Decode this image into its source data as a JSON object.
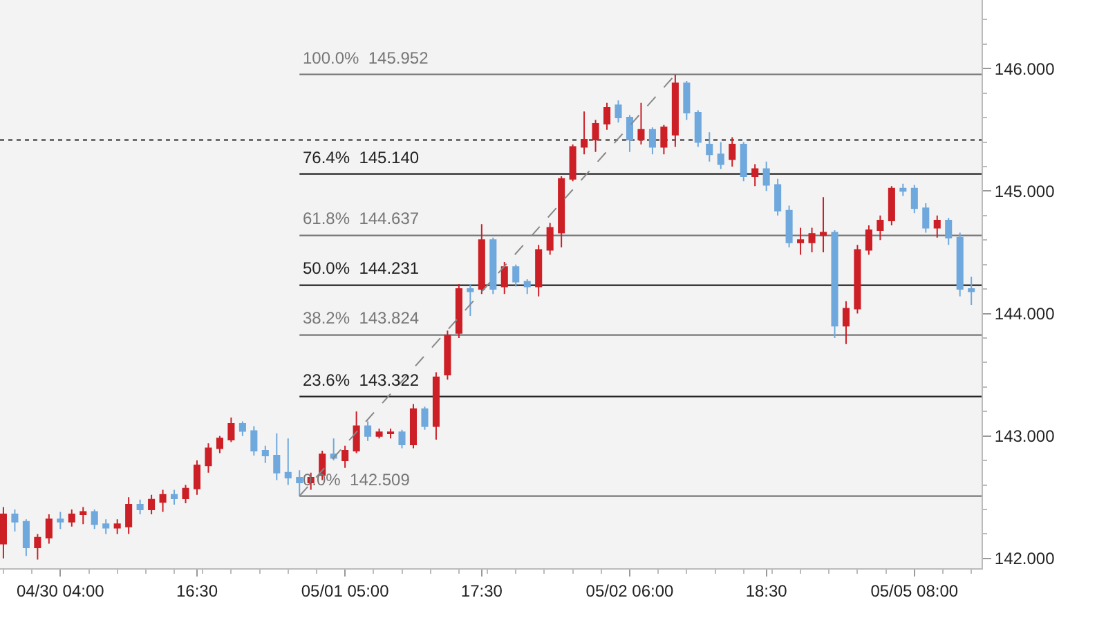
{
  "chart_data": {
    "type": "candlestick",
    "categories": [
      null,
      null,
      null,
      null,
      null,
      "04/30 04:00",
      null,
      null,
      null,
      null,
      null,
      null,
      null,
      null,
      null,
      null,
      null,
      "16:30",
      null,
      null,
      null,
      null,
      null,
      null,
      null,
      null,
      null,
      null,
      null,
      null,
      "05/01 05:00",
      null,
      null,
      null,
      null,
      null,
      null,
      null,
      null,
      null,
      null,
      null,
      "17:30",
      null,
      null,
      null,
      null,
      null,
      null,
      null,
      null,
      null,
      null,
      null,
      null,
      "05/02 06:00",
      null,
      null,
      null,
      null,
      null,
      null,
      null,
      null,
      null,
      null,
      null,
      "18:30",
      null,
      null,
      null,
      null,
      null,
      null,
      null,
      null,
      null,
      null,
      null,
      null,
      "05/05 08:00",
      null,
      null,
      null,
      null,
      null
    ],
    "ohlc": [
      [
        142.12,
        142.42,
        142.0,
        142.36
      ],
      [
        142.36,
        142.4,
        142.22,
        142.3
      ],
      [
        142.3,
        142.32,
        142.02,
        142.09
      ],
      [
        142.09,
        142.2,
        141.99,
        142.17
      ],
      [
        142.17,
        142.36,
        142.12,
        142.32
      ],
      [
        142.32,
        142.38,
        142.24,
        142.3
      ],
      [
        142.3,
        142.4,
        142.26,
        142.36
      ],
      [
        142.36,
        142.42,
        142.28,
        142.38
      ],
      [
        142.38,
        142.4,
        142.24,
        142.28
      ],
      [
        142.28,
        142.32,
        142.2,
        142.25
      ],
      [
        142.25,
        142.32,
        142.2,
        142.28
      ],
      [
        142.26,
        142.5,
        142.2,
        142.44
      ],
      [
        142.44,
        142.48,
        142.36,
        142.4
      ],
      [
        142.4,
        142.52,
        142.36,
        142.48
      ],
      [
        142.46,
        142.56,
        142.38,
        142.52
      ],
      [
        142.52,
        142.56,
        142.44,
        142.49
      ],
      [
        142.49,
        142.6,
        142.45,
        142.57
      ],
      [
        142.57,
        142.8,
        142.52,
        142.76
      ],
      [
        142.76,
        142.94,
        142.7,
        142.9
      ],
      [
        142.9,
        143.0,
        142.86,
        142.98
      ],
      [
        142.97,
        143.15,
        142.95,
        143.1
      ],
      [
        143.1,
        143.12,
        143.0,
        143.04
      ],
      [
        143.04,
        143.08,
        142.84,
        142.88
      ],
      [
        142.88,
        142.92,
        142.78,
        142.84
      ],
      [
        142.84,
        143.02,
        142.64,
        142.7
      ],
      [
        142.7,
        142.98,
        142.6,
        142.66
      ],
      [
        142.66,
        142.72,
        142.51,
        142.62
      ],
      [
        142.62,
        142.7,
        142.56,
        142.66
      ],
      [
        142.68,
        142.88,
        142.64,
        142.85
      ],
      [
        142.85,
        142.98,
        142.8,
        142.82
      ],
      [
        142.8,
        142.92,
        142.74,
        142.88
      ],
      [
        142.88,
        143.2,
        142.86,
        143.08
      ],
      [
        143.08,
        143.12,
        142.96,
        143.0
      ],
      [
        143.0,
        143.06,
        142.98,
        143.03
      ],
      [
        143.02,
        143.06,
        142.98,
        143.03
      ],
      [
        143.03,
        143.05,
        142.9,
        142.93
      ],
      [
        142.93,
        143.26,
        142.9,
        143.22
      ],
      [
        143.22,
        143.24,
        143.05,
        143.08
      ],
      [
        143.08,
        143.52,
        142.97,
        143.48
      ],
      [
        143.5,
        143.86,
        143.46,
        143.82
      ],
      [
        143.84,
        144.24,
        143.8,
        144.2
      ],
      [
        144.2,
        144.24,
        143.98,
        144.18
      ],
      [
        144.2,
        144.73,
        144.16,
        144.6
      ],
      [
        144.6,
        144.62,
        144.16,
        144.2
      ],
      [
        144.22,
        144.42,
        144.16,
        144.38
      ],
      [
        144.38,
        144.4,
        144.22,
        144.26
      ],
      [
        144.26,
        144.28,
        144.16,
        144.22
      ],
      [
        144.22,
        144.56,
        144.14,
        144.52
      ],
      [
        144.52,
        144.74,
        144.48,
        144.7
      ],
      [
        144.66,
        145.12,
        144.54,
        145.1
      ],
      [
        145.1,
        145.38,
        145.08,
        145.36
      ],
      [
        145.36,
        145.65,
        145.3,
        145.42
      ],
      [
        145.42,
        145.58,
        145.32,
        145.55
      ],
      [
        145.55,
        145.72,
        145.5,
        145.68
      ],
      [
        145.7,
        145.74,
        145.56,
        145.6
      ],
      [
        145.6,
        145.62,
        145.32,
        145.42
      ],
      [
        145.42,
        145.72,
        145.38,
        145.5
      ],
      [
        145.5,
        145.52,
        145.3,
        145.36
      ],
      [
        145.36,
        145.54,
        145.3,
        145.52
      ],
      [
        145.46,
        145.95,
        145.36,
        145.88
      ],
      [
        145.88,
        145.9,
        145.58,
        145.64
      ],
      [
        145.64,
        145.66,
        145.36,
        145.4
      ],
      [
        145.38,
        145.48,
        145.24,
        145.3
      ],
      [
        145.3,
        145.4,
        145.18,
        145.22
      ],
      [
        145.26,
        145.44,
        145.2,
        145.38
      ],
      [
        145.38,
        145.4,
        145.08,
        145.12
      ],
      [
        145.12,
        145.22,
        145.04,
        145.18
      ],
      [
        145.18,
        145.24,
        145.0,
        145.05
      ],
      [
        145.05,
        145.1,
        144.8,
        144.84
      ],
      [
        144.84,
        144.88,
        144.54,
        144.58
      ],
      [
        144.58,
        144.7,
        144.48,
        144.6
      ],
      [
        144.58,
        144.7,
        144.5,
        144.65
      ],
      [
        144.64,
        144.95,
        144.5,
        144.66
      ],
      [
        144.66,
        144.68,
        143.8,
        143.9
      ],
      [
        143.9,
        144.1,
        143.75,
        144.04
      ],
      [
        144.04,
        144.56,
        144.0,
        144.52
      ],
      [
        144.52,
        144.72,
        144.48,
        144.68
      ],
      [
        144.68,
        144.8,
        144.6,
        144.76
      ],
      [
        144.76,
        145.04,
        144.72,
        145.02
      ],
      [
        145.02,
        145.06,
        144.96,
        145.0
      ],
      [
        145.02,
        145.05,
        144.82,
        144.86
      ],
      [
        144.86,
        144.9,
        144.66,
        144.7
      ],
      [
        144.7,
        144.8,
        144.62,
        144.76
      ],
      [
        144.76,
        144.78,
        144.56,
        144.62
      ],
      [
        144.62,
        144.66,
        144.14,
        144.2
      ],
      [
        144.2,
        144.3,
        144.07,
        144.18
      ]
    ],
    "colors": [
      "#cc1f26",
      "#6fa8dc",
      "#6fa8dc",
      "#cc1f26",
      "#cc1f26",
      "#6fa8dc",
      "#cc1f26",
      "#cc1f26",
      "#6fa8dc",
      "#6fa8dc",
      "#cc1f26",
      "#cc1f26",
      "#6fa8dc",
      "#cc1f26",
      "#cc1f26",
      "#6fa8dc",
      "#cc1f26",
      "#cc1f26",
      "#cc1f26",
      "#cc1f26",
      "#cc1f26",
      "#6fa8dc",
      "#6fa8dc",
      "#6fa8dc",
      "#6fa8dc",
      "#6fa8dc",
      "#6fa8dc",
      "#cc1f26",
      "#cc1f26",
      "#6fa8dc",
      "#cc1f26",
      "#cc1f26",
      "#6fa8dc",
      "#cc1f26",
      "#cc1f26",
      "#6fa8dc",
      "#cc1f26",
      "#6fa8dc",
      "#cc1f26",
      "#cc1f26",
      "#cc1f26",
      "#6fa8dc",
      "#cc1f26",
      "#6fa8dc",
      "#cc1f26",
      "#6fa8dc",
      "#6fa8dc",
      "#cc1f26",
      "#cc1f26",
      "#cc1f26",
      "#cc1f26",
      "#cc1f26",
      "#cc1f26",
      "#cc1f26",
      "#6fa8dc",
      "#6fa8dc",
      "#cc1f26",
      "#6fa8dc",
      "#cc1f26",
      "#cc1f26",
      "#6fa8dc",
      "#6fa8dc",
      "#6fa8dc",
      "#6fa8dc",
      "#cc1f26",
      "#6fa8dc",
      "#cc1f26",
      "#6fa8dc",
      "#6fa8dc",
      "#6fa8dc",
      "#cc1f26",
      "#cc1f26",
      "#cc1f26",
      "#6fa8dc",
      "#cc1f26",
      "#cc1f26",
      "#cc1f26",
      "#cc1f26",
      "#cc1f26",
      "#6fa8dc",
      "#6fa8dc",
      "#6fa8dc",
      "#cc1f26",
      "#6fa8dc",
      "#6fa8dc",
      "#6fa8dc"
    ],
    "series": [
      {
        "type": "line",
        "values": [
          null,
          null,
          null,
          null,
          null,
          null,
          null,
          null,
          null,
          null,
          null,
          null,
          null,
          null,
          null,
          null,
          null,
          null,
          null,
          null,
          null,
          null,
          null,
          null,
          null,
          null,
          142.51,
          null,
          null,
          null,
          null,
          null,
          null,
          null,
          null,
          null,
          null,
          null,
          null,
          null,
          null,
          null,
          null,
          null,
          null,
          null,
          null,
          null,
          null,
          null,
          null,
          null,
          null,
          null,
          null,
          null,
          null,
          null,
          null,
          145.95,
          null,
          null,
          null,
          null,
          null,
          null,
          null,
          null,
          null,
          null,
          null,
          null,
          null,
          null,
          null,
          null,
          null,
          null,
          null,
          null,
          null,
          null,
          null,
          null,
          null,
          null
        ],
        "color": "#888888",
        "line_style": "dashed"
      }
    ],
    "ref_lines": [
      {
        "axis": "y",
        "value": 145.952,
        "label": "100.0%  145.952",
        "color": "#777777",
        "line_style": "solid"
      },
      {
        "axis": "y",
        "value": 145.14,
        "label": "76.4%  145.140",
        "color": "#222222",
        "line_style": "solid"
      },
      {
        "axis": "y",
        "value": 144.637,
        "label": "61.8%  144.637",
        "color": "#777777",
        "line_style": "solid"
      },
      {
        "axis": "y",
        "value": 144.231,
        "label": "50.0%  144.231",
        "color": "#222222",
        "line_style": "solid"
      },
      {
        "axis": "y",
        "value": 143.824,
        "label": "38.2%  143.824",
        "color": "#777777",
        "line_style": "solid"
      },
      {
        "axis": "y",
        "value": 143.322,
        "label": "23.6%  143.322",
        "color": "#222222",
        "line_style": "solid"
      },
      {
        "axis": "y",
        "value": 142.509,
        "label": "0.0%  142.509",
        "color": "#777777",
        "line_style": "solid"
      },
      {
        "axis": "y",
        "value": 145.417,
        "color": "#222222",
        "line_style": "dotted"
      }
    ],
    "ylim": [
      141.92,
      146.56
    ],
    "yticks": [
      {
        "value": 142,
        "label": "142.000"
      },
      {
        "value": 143,
        "label": "143.000"
      },
      {
        "value": 144,
        "label": "144.000"
      },
      {
        "value": 145,
        "label": "145.000"
      },
      {
        "value": 146,
        "label": "146.000"
      }
    ],
    "grid": false
  }
}
